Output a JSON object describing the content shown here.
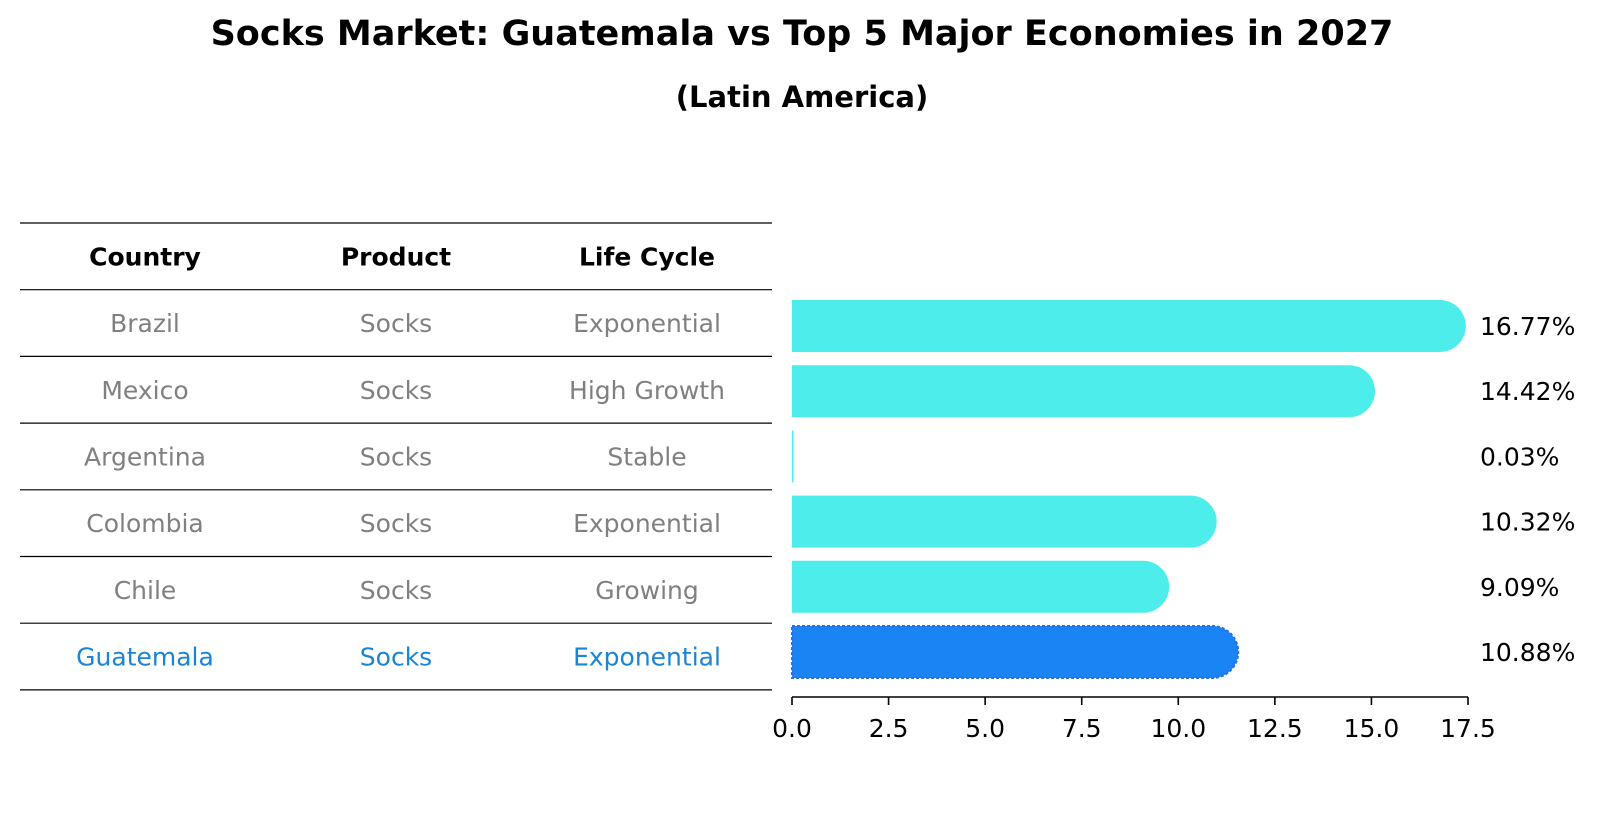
{
  "chart_data": {
    "type": "bar",
    "orientation": "horizontal",
    "title": "Socks Market: Guatemala vs Top 5 Major Economies in 2027",
    "subtitle": "(Latin America)",
    "categories": [
      "Brazil",
      "Mexico",
      "Argentina",
      "Colombia",
      "Chile",
      "Guatemala"
    ],
    "values": [
      16.77,
      14.42,
      0.03,
      10.32,
      9.09,
      10.88
    ],
    "value_labels": [
      "16.77%",
      "14.42%",
      "0.03%",
      "10.32%",
      "9.09%",
      "10.88%"
    ],
    "highlight": "Guatemala",
    "xlim": [
      0,
      17.5
    ],
    "xticks": [
      "0.0",
      "2.5",
      "5.0",
      "7.5",
      "10.0",
      "12.5",
      "15.0",
      "17.5"
    ],
    "xtick_values": [
      0,
      2.5,
      5.0,
      7.5,
      10.0,
      12.5,
      15.0,
      17.5
    ],
    "xlabel": "",
    "ylabel": "",
    "grid": false,
    "colors": {
      "bar": "#4DEDEB",
      "highlight_bar": "#1A84F5",
      "highlight_text": "#1A84D6",
      "muted_text": "#808080",
      "text": "#000000"
    },
    "table": {
      "headers": [
        "Country",
        "Product",
        "Life Cycle"
      ],
      "rows": [
        [
          "Brazil",
          "Socks",
          "Exponential"
        ],
        [
          "Mexico",
          "Socks",
          "High Growth"
        ],
        [
          "Argentina",
          "Socks",
          "Stable"
        ],
        [
          "Colombia",
          "Socks",
          "Exponential"
        ],
        [
          "Chile",
          "Socks",
          "Growing"
        ],
        [
          "Guatemala",
          "Socks",
          "Exponential"
        ]
      ]
    }
  }
}
